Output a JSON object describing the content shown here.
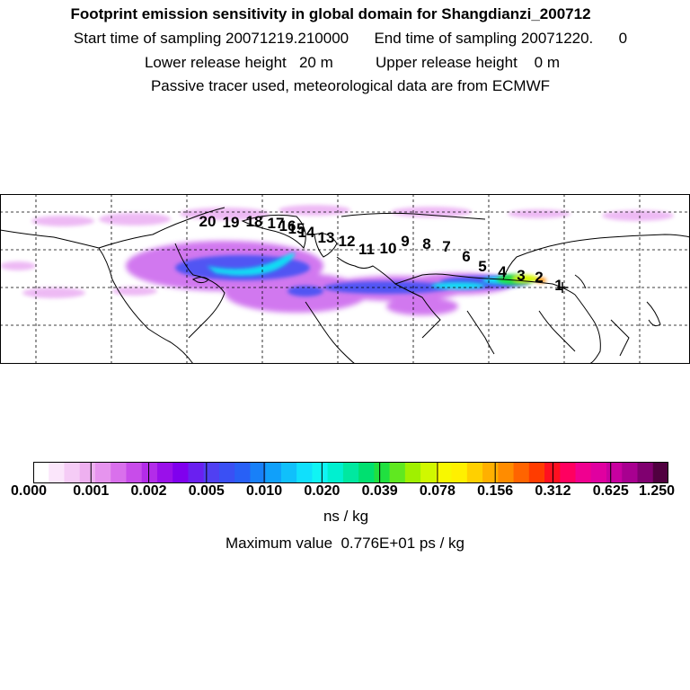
{
  "title": "Footprint emission sensitivity in global domain for Shangdianzi_200712",
  "sampling_line": "Start time of sampling 20071219.210000      End time of sampling 20071220.      0",
  "release_line": "Lower release height   20 m          Upper release height    0 m",
  "tracer_line": "Passive tracer used, meteorological data are from ECMWF",
  "track_labels": [
    "1",
    "2",
    "3",
    "4",
    "5",
    "6",
    "7",
    "8",
    "9",
    "10",
    "11",
    "12",
    "13",
    "14",
    "15",
    "16",
    "17",
    "18",
    "19",
    "20"
  ],
  "colorbar": {
    "colors": [
      "#ffffff",
      "#fbe6fb",
      "#f5ccf6",
      "#eeb0f0",
      "#e694ee",
      "#d970ec",
      "#c84cea",
      "#b32ce9",
      "#9a10ea",
      "#8000ee",
      "#6a20f0",
      "#5040f2",
      "#3a50f4",
      "#2860f6",
      "#1880f8",
      "#10a0fa",
      "#10c0fb",
      "#10e0fc",
      "#10f4f4",
      "#00f0d0",
      "#00e8a0",
      "#00e070",
      "#20e040",
      "#60e820",
      "#a0f000",
      "#d0f800",
      "#f8f800",
      "#fff000",
      "#ffd000",
      "#ffb000",
      "#ff8c00",
      "#ff6400",
      "#ff3c00",
      "#ff1020",
      "#ff0060",
      "#f00090",
      "#e000a0",
      "#c800a0",
      "#a80090",
      "#800070",
      "#500040"
    ],
    "tick_labels": [
      "0.000",
      "0.001",
      "0.002",
      "0.005",
      "0.010",
      "0.020",
      "0.039",
      "0.078",
      "0.156",
      "0.312",
      "0.625",
      "1.250"
    ],
    "units": "ns / kg"
  },
  "max_value_line": "Maximum value  0.776E+01 ps / kg"
}
